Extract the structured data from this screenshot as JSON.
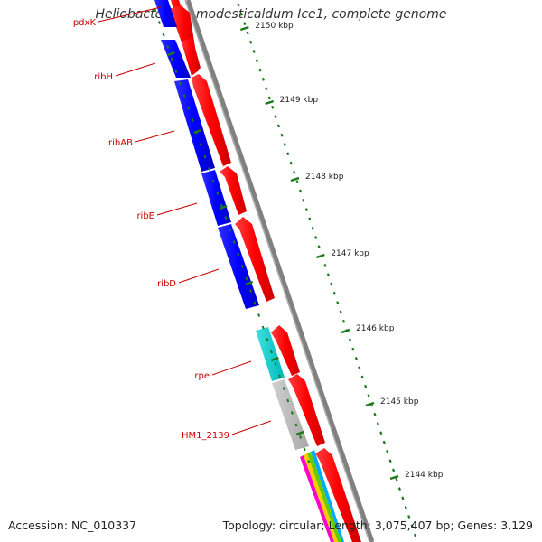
{
  "title": "Heliobacterium modesticaldum Ice1, complete genome",
  "accession": "Accession: NC_010337",
  "topology": "Topology: circular; Length: 3,075,407 bp; Genes: 3,129",
  "ticks": [
    {
      "label": "2150 kbp"
    },
    {
      "label": "2149 kbp"
    },
    {
      "label": "2148 kbp"
    },
    {
      "label": "2147 kbp"
    },
    {
      "label": "2146 kbp"
    },
    {
      "label": "2145 kbp"
    },
    {
      "label": "2144 kbp"
    }
  ],
  "gene_labels": [
    {
      "name": "pdxK"
    },
    {
      "name": "ribH"
    },
    {
      "name": "ribAB"
    },
    {
      "name": "ribE"
    },
    {
      "name": "ribD"
    },
    {
      "name": "rpe"
    },
    {
      "name": "HM1_2139"
    }
  ],
  "colors": {
    "forward_cds": "#ff0000",
    "reverse_cds": "#0000ff",
    "rpe_feature": "#00cccc",
    "hypothetical": "#bbbbbb",
    "ruler": "#1a7a1a",
    "backbone": "#808080",
    "label": "#cc0000"
  }
}
